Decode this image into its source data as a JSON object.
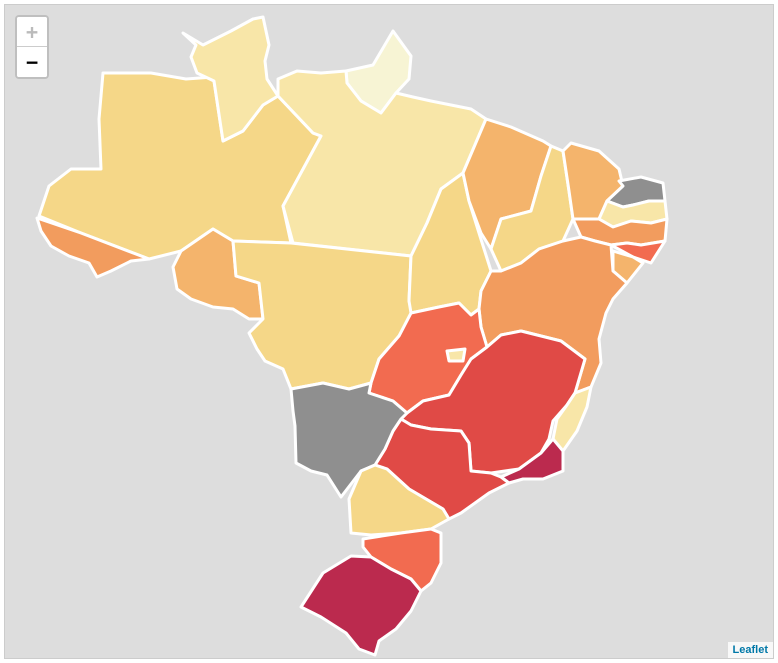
{
  "controls": {
    "zoom_in_label": "+",
    "zoom_out_label": "−"
  },
  "attribution": {
    "text": "Leaflet"
  },
  "legend_colors": {
    "c1": "#f7f4d4",
    "c2": "#f8e6a8",
    "c3": "#f5d788",
    "c4": "#f4b46c",
    "c5": "#f29c5e",
    "c6": "#f26b50",
    "c7": "#e04a46",
    "c8": "#bb2a4e",
    "nodata": "#8f8f8f"
  },
  "regions": [
    {
      "name": "amazonas",
      "fill": "c3"
    },
    {
      "name": "acre",
      "fill": "c5"
    },
    {
      "name": "roraima",
      "fill": "c2"
    },
    {
      "name": "amapa",
      "fill": "c1"
    },
    {
      "name": "para",
      "fill": "c2"
    },
    {
      "name": "rondonia",
      "fill": "c4"
    },
    {
      "name": "mato-grosso",
      "fill": "c3"
    },
    {
      "name": "tocantins",
      "fill": "c3"
    },
    {
      "name": "maranhao",
      "fill": "c4"
    },
    {
      "name": "piaui",
      "fill": "c3"
    },
    {
      "name": "ceara",
      "fill": "c4"
    },
    {
      "name": "rio-grande-do-norte",
      "fill": "nodata"
    },
    {
      "name": "paraiba",
      "fill": "c2"
    },
    {
      "name": "pernambuco",
      "fill": "c5"
    },
    {
      "name": "alagoas",
      "fill": "c6"
    },
    {
      "name": "sergipe",
      "fill": "c4"
    },
    {
      "name": "bahia",
      "fill": "c5"
    },
    {
      "name": "goias",
      "fill": "c6"
    },
    {
      "name": "distrito-federal",
      "fill": "c2"
    },
    {
      "name": "minas-gerais",
      "fill": "c7"
    },
    {
      "name": "espirito-santo",
      "fill": "c2"
    },
    {
      "name": "rio-de-janeiro",
      "fill": "c8"
    },
    {
      "name": "sao-paulo",
      "fill": "c7"
    },
    {
      "name": "mato-grosso-do-sul",
      "fill": "nodata"
    },
    {
      "name": "parana",
      "fill": "c3"
    },
    {
      "name": "santa-catarina",
      "fill": "c6"
    },
    {
      "name": "rio-grande-do-sul",
      "fill": "c8"
    }
  ]
}
